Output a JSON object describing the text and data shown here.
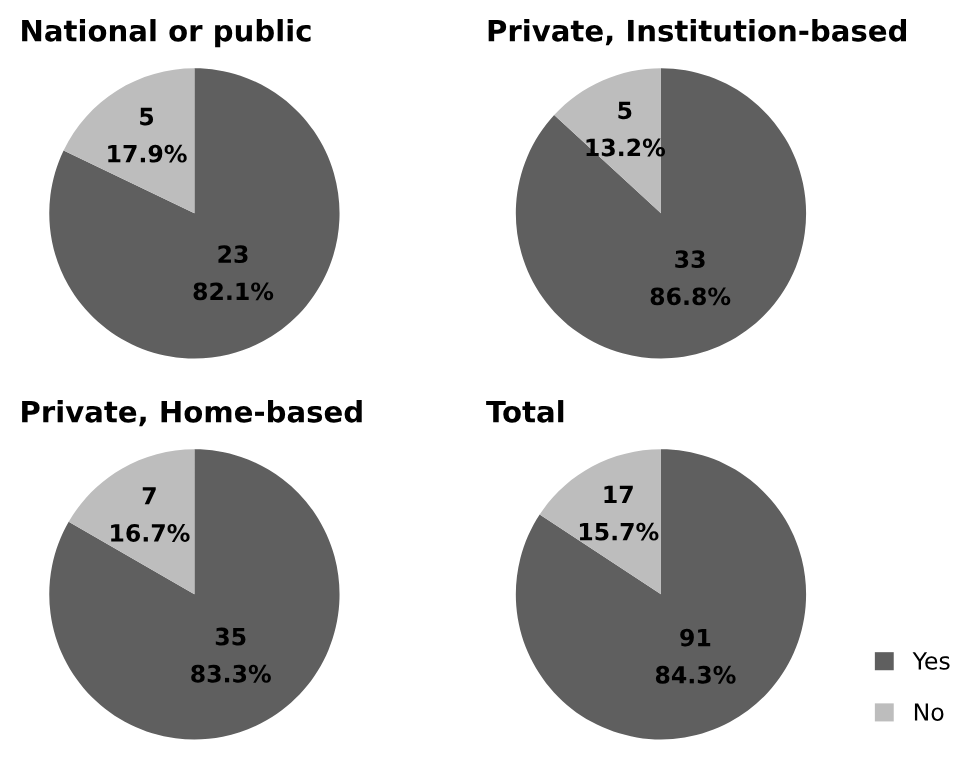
{
  "chart_data": [
    {
      "type": "pie",
      "title": "National or public",
      "categories": [
        "Yes",
        "No"
      ],
      "values": [
        23,
        5
      ],
      "colors": [
        "#5f5f5f",
        "#bdbdbd"
      ],
      "value_labels": [
        "23\n82.1%",
        "5\n17.9%"
      ],
      "legend": "bottom right"
    },
    {
      "type": "pie",
      "title": "Private, Institution-based",
      "categories": [
        null,
        null
      ],
      "values": [
        33,
        5
      ],
      "colors": [
        "#5f5f5f",
        "#bdbdbd"
      ],
      "value_labels": [
        "33\n86.8%",
        "5\n13.2%"
      ]
    },
    {
      "type": "pie",
      "title": "Private, Home-based",
      "categories": [
        null,
        null
      ],
      "values": [
        35,
        7
      ],
      "colors": [
        "#5f5f5f",
        "#bdbdbd"
      ],
      "value_labels": [
        "35\n83.3%",
        "7\n16.7%"
      ]
    },
    {
      "type": "pie",
      "title": "Total",
      "categories": [
        null,
        null
      ],
      "values": [
        91,
        17
      ],
      "colors": [
        "#5f5f5f",
        "#bdbdbd"
      ],
      "value_labels": [
        "91\n84.3%",
        "17\n15.7%"
      ]
    }
  ]
}
